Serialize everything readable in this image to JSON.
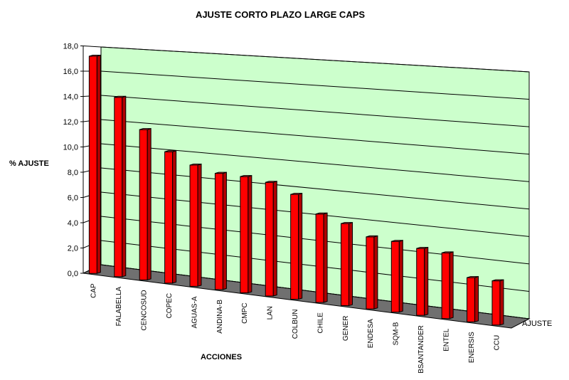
{
  "chart_data": {
    "type": "bar",
    "title": "AJUSTE CORTO PLAZO LARGE CAPS",
    "xlabel": "ACCIONES",
    "ylabel": "% AJUSTE",
    "ylim": [
      0,
      18
    ],
    "yticks": [
      "0,0",
      "2,0",
      "4,0",
      "6,0",
      "8,0",
      "10,0",
      "12,0",
      "14,0",
      "16,0",
      "18,0"
    ],
    "categories": [
      "CAP",
      "FALABELLA",
      "CENCOSUD",
      "COPEC",
      "AGUAS-A",
      "ANDINA-B",
      "CMPC",
      "LAN",
      "COLBUN",
      "CHILE",
      "GENER",
      "ENDESA",
      "SQM-B",
      "BSANTANDER",
      "ENTEL",
      "ENERSIS",
      "CCU"
    ],
    "series": [
      {
        "name": "AJUSTE",
        "values": [
          17.2,
          14.2,
          11.9,
          10.4,
          9.6,
          9.2,
          9.2,
          9.0,
          8.3,
          7.0,
          6.5,
          5.7,
          5.6,
          5.3,
          5.2,
          3.5,
          3.5
        ]
      }
    ],
    "grid": true,
    "legend": "bottom-right",
    "colors": {
      "wall": "#ccffcc",
      "floor": "#707070",
      "bar_front": "#ff0000",
      "bar_side": "#b00000",
      "bar_top": "#ff3a3a",
      "bar_edge": "#000000"
    }
  }
}
